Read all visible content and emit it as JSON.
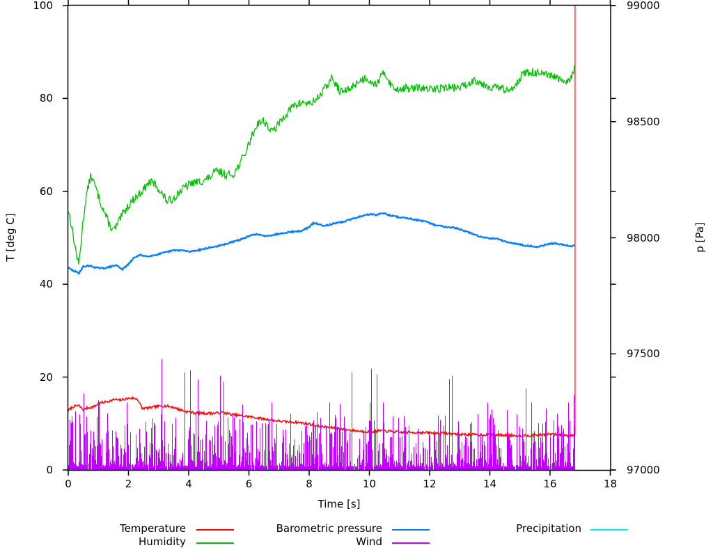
{
  "chart_data": {
    "type": "line",
    "title": "",
    "xlabel": "Time [s]",
    "ylabel_left": "T [deg C]",
    "ylabel_right": "p [Pa]",
    "xlim": [
      0,
      18
    ],
    "ylim_left": [
      0,
      100
    ],
    "ylim_right": [
      97000,
      99000
    ],
    "xticks": [
      0,
      2,
      4,
      6,
      8,
      10,
      12,
      14,
      16,
      18
    ],
    "yticks_left": [
      0,
      20,
      40,
      60,
      80,
      100
    ],
    "yticks_right": [
      97000,
      97500,
      98000,
      98500,
      99000
    ],
    "grid": false,
    "legend_position": "bottom",
    "data_end_time_s": 16.83,
    "axis_color": "#000000",
    "background": "#ffffff",
    "series": [
      {
        "name": "Temperature",
        "color": "#ff0000",
        "axis": "left",
        "style": "noisy-line",
        "noise": 0.28,
        "end_spike_to": 100,
        "anchors": [
          [
            0,
            12.8
          ],
          [
            0.15,
            13.6
          ],
          [
            0.35,
            13.9
          ],
          [
            0.5,
            12.9
          ],
          [
            0.65,
            13.4
          ],
          [
            0.85,
            13.6
          ],
          [
            1.0,
            14.3
          ],
          [
            1.2,
            14.6
          ],
          [
            1.4,
            14.9
          ],
          [
            1.55,
            15.2
          ],
          [
            1.7,
            15.0
          ],
          [
            1.9,
            15.3
          ],
          [
            2.1,
            15.5
          ],
          [
            2.3,
            15.3
          ],
          [
            2.45,
            13.3
          ],
          [
            2.6,
            13.3
          ],
          [
            2.8,
            13.5
          ],
          [
            3.0,
            13.7
          ],
          [
            3.2,
            13.8
          ],
          [
            3.45,
            13.6
          ],
          [
            3.65,
            13.1
          ],
          [
            3.9,
            12.6
          ],
          [
            4.2,
            12.3
          ],
          [
            4.5,
            12.2
          ],
          [
            4.8,
            12.2
          ],
          [
            5.1,
            12.4
          ],
          [
            5.4,
            12.0
          ],
          [
            5.7,
            11.7
          ],
          [
            6.0,
            11.5
          ],
          [
            6.3,
            11.2
          ],
          [
            6.6,
            10.9
          ],
          [
            6.9,
            10.6
          ],
          [
            7.2,
            10.4
          ],
          [
            7.5,
            10.3
          ],
          [
            7.8,
            10.1
          ],
          [
            8.0,
            9.9
          ],
          [
            8.3,
            9.4
          ],
          [
            8.6,
            9.2
          ],
          [
            8.9,
            9.0
          ],
          [
            9.2,
            8.7
          ],
          [
            9.5,
            8.5
          ],
          [
            9.8,
            8.3
          ],
          [
            10.1,
            8.2
          ],
          [
            10.4,
            8.5
          ],
          [
            10.7,
            8.3
          ],
          [
            11.0,
            8.1
          ],
          [
            11.5,
            8.1
          ],
          [
            12.0,
            8.0
          ],
          [
            12.5,
            7.9
          ],
          [
            13.0,
            7.7
          ],
          [
            13.5,
            7.6
          ],
          [
            14.0,
            7.6
          ],
          [
            14.5,
            7.5
          ],
          [
            15.0,
            7.4
          ],
          [
            15.5,
            7.5
          ],
          [
            16.0,
            7.7
          ],
          [
            16.3,
            7.6
          ],
          [
            16.6,
            7.4
          ],
          [
            16.83,
            7.6
          ]
        ]
      },
      {
        "name": "Humidity",
        "color": "#00c000",
        "axis": "left",
        "style": "noisy-line",
        "noise": 0.9,
        "anchors": [
          [
            0,
            56
          ],
          [
            0.1,
            53
          ],
          [
            0.2,
            49
          ],
          [
            0.35,
            44
          ],
          [
            0.5,
            54
          ],
          [
            0.6,
            59
          ],
          [
            0.75,
            63.5
          ],
          [
            0.9,
            61
          ],
          [
            1.05,
            58
          ],
          [
            1.2,
            55.5
          ],
          [
            1.35,
            53
          ],
          [
            1.5,
            51.5
          ],
          [
            1.65,
            53
          ],
          [
            1.8,
            55
          ],
          [
            2.0,
            57
          ],
          [
            2.2,
            58.5
          ],
          [
            2.45,
            60
          ],
          [
            2.7,
            62
          ],
          [
            2.9,
            61.5
          ],
          [
            3.1,
            59.5
          ],
          [
            3.3,
            57.8
          ],
          [
            3.5,
            58.5
          ],
          [
            3.7,
            60
          ],
          [
            3.9,
            61
          ],
          [
            4.1,
            61.8
          ],
          [
            4.3,
            62
          ],
          [
            4.5,
            62.3
          ],
          [
            4.7,
            63
          ],
          [
            4.9,
            64.3
          ],
          [
            5.1,
            64
          ],
          [
            5.3,
            63.5
          ],
          [
            5.5,
            63.8
          ],
          [
            5.7,
            66
          ],
          [
            5.9,
            68.5
          ],
          [
            6.1,
            72
          ],
          [
            6.3,
            74.8
          ],
          [
            6.5,
            75.2
          ],
          [
            6.75,
            72.8
          ],
          [
            7.0,
            74.5
          ],
          [
            7.2,
            76.5
          ],
          [
            7.5,
            78.5
          ],
          [
            7.8,
            79.2
          ],
          [
            8.0,
            78.8
          ],
          [
            8.2,
            79.5
          ],
          [
            8.45,
            81.5
          ],
          [
            8.75,
            84.3
          ],
          [
            9.05,
            81.4
          ],
          [
            9.3,
            81.8
          ],
          [
            9.6,
            83.5
          ],
          [
            9.9,
            84.5
          ],
          [
            10.2,
            83
          ],
          [
            10.5,
            85.6
          ],
          [
            10.8,
            82
          ],
          [
            11.1,
            82.2
          ],
          [
            11.4,
            82.1
          ],
          [
            11.7,
            82.3
          ],
          [
            12.0,
            81.9
          ],
          [
            12.3,
            82.2
          ],
          [
            12.6,
            82.4
          ],
          [
            12.9,
            82.3
          ],
          [
            13.2,
            82.8
          ],
          [
            13.5,
            84.1
          ],
          [
            13.8,
            83
          ],
          [
            14.1,
            82.4
          ],
          [
            14.4,
            82.2
          ],
          [
            14.6,
            81.4
          ],
          [
            14.9,
            83.5
          ],
          [
            15.1,
            85.3
          ],
          [
            15.4,
            85.7
          ],
          [
            15.7,
            85.2
          ],
          [
            16.0,
            84.8
          ],
          [
            16.2,
            84.6
          ],
          [
            16.45,
            83.2
          ],
          [
            16.6,
            83.6
          ],
          [
            16.83,
            86.3
          ]
        ]
      },
      {
        "name": "Barometric pressure",
        "color": "#0080ff",
        "axis": "right",
        "style": "noisy-line",
        "noise": 3,
        "anchors": [
          [
            0,
            97870
          ],
          [
            0.2,
            97856
          ],
          [
            0.35,
            97848
          ],
          [
            0.5,
            97876
          ],
          [
            0.7,
            97880
          ],
          [
            0.9,
            97872
          ],
          [
            1.1,
            97868
          ],
          [
            1.3,
            97872
          ],
          [
            1.6,
            97882
          ],
          [
            1.8,
            97864
          ],
          [
            2.0,
            97886
          ],
          [
            2.2,
            97916
          ],
          [
            2.4,
            97926
          ],
          [
            2.6,
            97920
          ],
          [
            2.9,
            97926
          ],
          [
            3.2,
            97936
          ],
          [
            3.5,
            97946
          ],
          [
            3.8,
            97946
          ],
          [
            4.0,
            97940
          ],
          [
            4.2,
            97944
          ],
          [
            4.5,
            97952
          ],
          [
            4.8,
            97960
          ],
          [
            5.1,
            97968
          ],
          [
            5.4,
            97980
          ],
          [
            5.7,
            97992
          ],
          [
            6.0,
            98006
          ],
          [
            6.2,
            98016
          ],
          [
            6.5,
            98008
          ],
          [
            6.8,
            98012
          ],
          [
            7.1,
            98020
          ],
          [
            7.4,
            98026
          ],
          [
            7.7,
            98028
          ],
          [
            8.0,
            98046
          ],
          [
            8.15,
            98064
          ],
          [
            8.5,
            98052
          ],
          [
            8.8,
            98060
          ],
          [
            9.1,
            98068
          ],
          [
            9.4,
            98080
          ],
          [
            9.7,
            98092
          ],
          [
            10.0,
            98102
          ],
          [
            10.2,
            98098
          ],
          [
            10.45,
            98106
          ],
          [
            10.7,
            98096
          ],
          [
            11.0,
            98088
          ],
          [
            11.3,
            98084
          ],
          [
            11.6,
            98076
          ],
          [
            11.9,
            98068
          ],
          [
            12.2,
            98054
          ],
          [
            12.5,
            98048
          ],
          [
            12.8,
            98044
          ],
          [
            13.1,
            98032
          ],
          [
            13.4,
            98018
          ],
          [
            13.7,
            98004
          ],
          [
            14.0,
            97998
          ],
          [
            14.2,
            97998
          ],
          [
            14.5,
            97984
          ],
          [
            14.8,
            97976
          ],
          [
            15.1,
            97968
          ],
          [
            15.4,
            97964
          ],
          [
            15.6,
            97960
          ],
          [
            15.9,
            97972
          ],
          [
            16.2,
            97976
          ],
          [
            16.5,
            97968
          ],
          [
            16.7,
            97964
          ],
          [
            16.83,
            97966
          ]
        ]
      },
      {
        "name": "Wind",
        "color": "#c000ff",
        "axis": "left",
        "style": "random-spikes",
        "spike_base_range": [
          0,
          14.5
        ],
        "prominent_spikes": [
          [
            0.5,
            16.5
          ],
          [
            1.0,
            15
          ],
          [
            3.1,
            23.9
          ],
          [
            3.85,
            21
          ],
          [
            4.05,
            21.5
          ],
          [
            4.3,
            19.5
          ],
          [
            5.05,
            20.3
          ],
          [
            5.15,
            19
          ],
          [
            9.4,
            21
          ],
          [
            10.05,
            21.8
          ],
          [
            10.25,
            20.5
          ],
          [
            12.65,
            19.5
          ],
          [
            12.75,
            20.3
          ],
          [
            15.2,
            17.5
          ],
          [
            16.78,
            16.2
          ]
        ]
      },
      {
        "name": "Precipitation",
        "color": "#00eeee",
        "axis": "left",
        "style": "flat",
        "anchors": [
          [
            0,
            0
          ],
          [
            16.83,
            0
          ]
        ]
      }
    ]
  }
}
